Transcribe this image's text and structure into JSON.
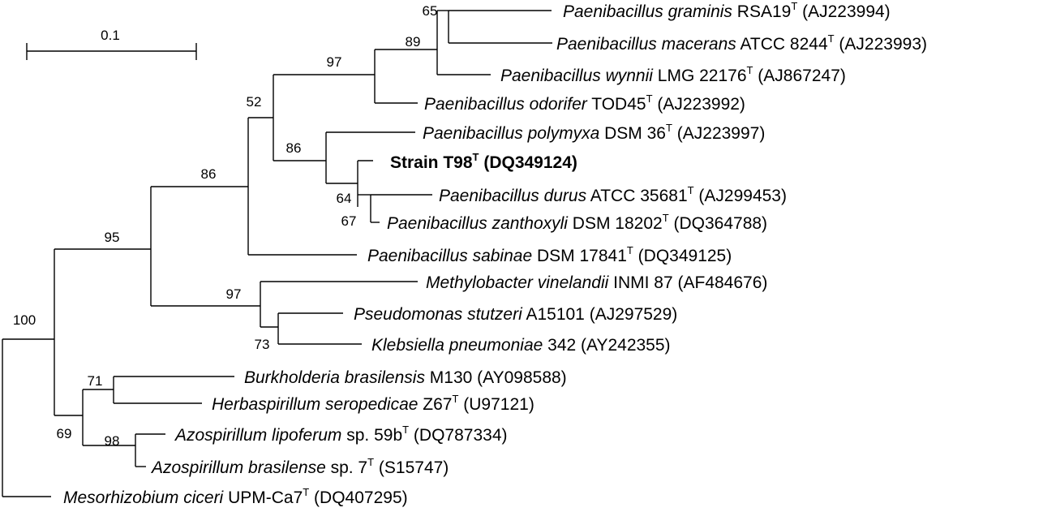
{
  "scale": {
    "label": "0.1"
  },
  "taxa": [
    {
      "id": "t1",
      "species": "Paenibacillus graminis",
      "strain": " RSA19",
      "type_strain": true,
      "accession": " (AJ223994)",
      "bold": false
    },
    {
      "id": "t2",
      "species": "Paenibacillus macerans",
      "strain": " ATCC 8244",
      "type_strain": true,
      "accession": " (AJ223993)",
      "bold": false
    },
    {
      "id": "t3",
      "species": "Paenibacillus wynnii",
      "strain": " LMG 22176",
      "type_strain": true,
      "accession": " (AJ867247)",
      "bold": false
    },
    {
      "id": "t4",
      "species": "Paenibacillus odorifer",
      "strain": " TOD45",
      "type_strain": true,
      "accession": " (AJ223992)",
      "bold": false
    },
    {
      "id": "t5",
      "species": "Paenibacillus polymyxa",
      "strain": " DSM 36",
      "type_strain": true,
      "accession": " (AJ223997)",
      "bold": false
    },
    {
      "id": "t6",
      "species": "Strain T98",
      "strain": "",
      "type_strain": true,
      "accession": " (DQ349124)",
      "bold": true
    },
    {
      "id": "t7",
      "species": "Paenibacillus durus",
      "strain": " ATCC 35681",
      "type_strain": true,
      "accession": " (AJ299453)",
      "bold": false
    },
    {
      "id": "t8",
      "species": "Paenibacillus zanthoxyli",
      "strain": " DSM 18202",
      "type_strain": true,
      "accession": " (DQ364788)",
      "bold": false
    },
    {
      "id": "t9",
      "species": "Paenibacillus sabinae",
      "strain": " DSM 17841",
      "type_strain": true,
      "accession": " (DQ349125)",
      "bold": false
    },
    {
      "id": "t10",
      "species": "Methylobacter vinelandii",
      "strain": " INMI 87",
      "type_strain": false,
      "accession": " (AF484676)",
      "bold": false
    },
    {
      "id": "t11",
      "species": "Pseudomonas stutzeri",
      "strain": " A15101",
      "type_strain": false,
      "accession": " (AJ297529)",
      "bold": false
    },
    {
      "id": "t12",
      "species": "Klebsiella pneumoniae",
      "strain": " 342",
      "type_strain": false,
      "accession": " (AY242355)",
      "bold": false
    },
    {
      "id": "t13",
      "species": "Burkholderia brasilensis",
      "strain": " M130",
      "type_strain": false,
      "accession": " (AY098588)",
      "bold": false
    },
    {
      "id": "t14",
      "species": "Herbaspirillum seropedicae",
      "strain": " Z67",
      "type_strain": true,
      "accession": " (U97121)",
      "bold": false
    },
    {
      "id": "t15",
      "species": "Azospirillum lipoferum",
      "strain": " sp. 59b",
      "type_strain": true,
      "accession": " (DQ787334)",
      "bold": false
    },
    {
      "id": "t16",
      "species": "Azospirillum brasilense",
      "strain": " sp. 7",
      "type_strain": true,
      "accession": " (S15747)",
      "bold": false
    },
    {
      "id": "t17",
      "species": "Mesorhizobium ciceri",
      "strain": " UPM-Ca7",
      "type_strain": true,
      "accession": " (DQ407295)",
      "bold": false
    }
  ],
  "type_strain_mark": "T",
  "bootstrap": [
    "65",
    "89",
    "97",
    "52",
    "86",
    "86",
    "64",
    "67",
    "95",
    "97",
    "73",
    "100",
    "71",
    "69",
    "98"
  ]
}
